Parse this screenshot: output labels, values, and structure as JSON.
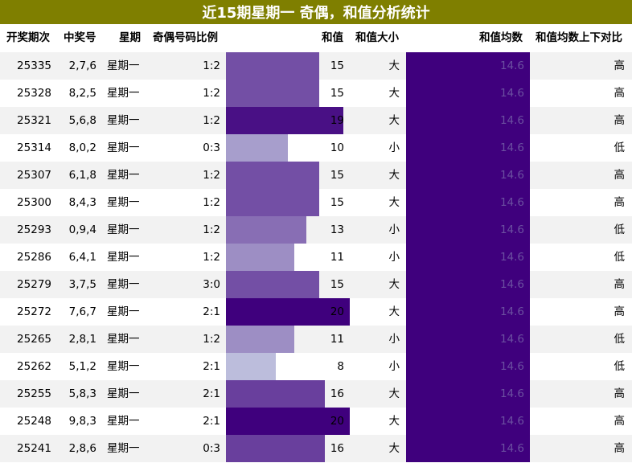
{
  "title": "近15期星期一 奇偶，和值分析统计",
  "headers": {
    "period": "开奖期次",
    "numbers": "中奖号",
    "weekday": "星期",
    "ratio": "奇偶号码比例",
    "sum": "和值",
    "size": "和值大小",
    "avg": "和值均数",
    "compare": "和值均数上下对比"
  },
  "colors": {
    "title_bg": "#7f7f00",
    "avg_bar": "#3f007d",
    "scale_low": "#bcbddc",
    "scale_high": "#3f007d"
  },
  "chart_data": {
    "type": "table",
    "bar_column": "和值",
    "bar_scale": [
      0,
      20
    ],
    "rows": [
      {
        "period": "25335",
        "numbers": "2,7,6",
        "weekday": "星期一",
        "ratio": "1:2",
        "sum": 15,
        "size": "大",
        "avg": 14.6,
        "compare": "高"
      },
      {
        "period": "25328",
        "numbers": "8,2,5",
        "weekday": "星期一",
        "ratio": "1:2",
        "sum": 15,
        "size": "大",
        "avg": 14.6,
        "compare": "高"
      },
      {
        "period": "25321",
        "numbers": "5,6,8",
        "weekday": "星期一",
        "ratio": "1:2",
        "sum": 19,
        "size": "大",
        "avg": 14.6,
        "compare": "高"
      },
      {
        "period": "25314",
        "numbers": "8,0,2",
        "weekday": "星期一",
        "ratio": "0:3",
        "sum": 10,
        "size": "小",
        "avg": 14.6,
        "compare": "低"
      },
      {
        "period": "25307",
        "numbers": "6,1,8",
        "weekday": "星期一",
        "ratio": "1:2",
        "sum": 15,
        "size": "大",
        "avg": 14.6,
        "compare": "高"
      },
      {
        "period": "25300",
        "numbers": "8,4,3",
        "weekday": "星期一",
        "ratio": "1:2",
        "sum": 15,
        "size": "大",
        "avg": 14.6,
        "compare": "高"
      },
      {
        "period": "25293",
        "numbers": "0,9,4",
        "weekday": "星期一",
        "ratio": "1:2",
        "sum": 13,
        "size": "小",
        "avg": 14.6,
        "compare": "低"
      },
      {
        "period": "25286",
        "numbers": "6,4,1",
        "weekday": "星期一",
        "ratio": "1:2",
        "sum": 11,
        "size": "小",
        "avg": 14.6,
        "compare": "低"
      },
      {
        "period": "25279",
        "numbers": "3,7,5",
        "weekday": "星期一",
        "ratio": "3:0",
        "sum": 15,
        "size": "大",
        "avg": 14.6,
        "compare": "高"
      },
      {
        "period": "25272",
        "numbers": "7,6,7",
        "weekday": "星期一",
        "ratio": "2:1",
        "sum": 20,
        "size": "大",
        "avg": 14.6,
        "compare": "高"
      },
      {
        "period": "25265",
        "numbers": "2,8,1",
        "weekday": "星期一",
        "ratio": "1:2",
        "sum": 11,
        "size": "小",
        "avg": 14.6,
        "compare": "低"
      },
      {
        "period": "25262",
        "numbers": "5,1,2",
        "weekday": "星期一",
        "ratio": "2:1",
        "sum": 8,
        "size": "小",
        "avg": 14.6,
        "compare": "低"
      },
      {
        "period": "25255",
        "numbers": "5,8,3",
        "weekday": "星期一",
        "ratio": "2:1",
        "sum": 16,
        "size": "大",
        "avg": 14.6,
        "compare": "高"
      },
      {
        "period": "25248",
        "numbers": "9,8,3",
        "weekday": "星期一",
        "ratio": "2:1",
        "sum": 20,
        "size": "大",
        "avg": 14.6,
        "compare": "高"
      },
      {
        "period": "25241",
        "numbers": "2,8,6",
        "weekday": "星期一",
        "ratio": "0:3",
        "sum": 16,
        "size": "大",
        "avg": 14.6,
        "compare": "高"
      }
    ]
  }
}
